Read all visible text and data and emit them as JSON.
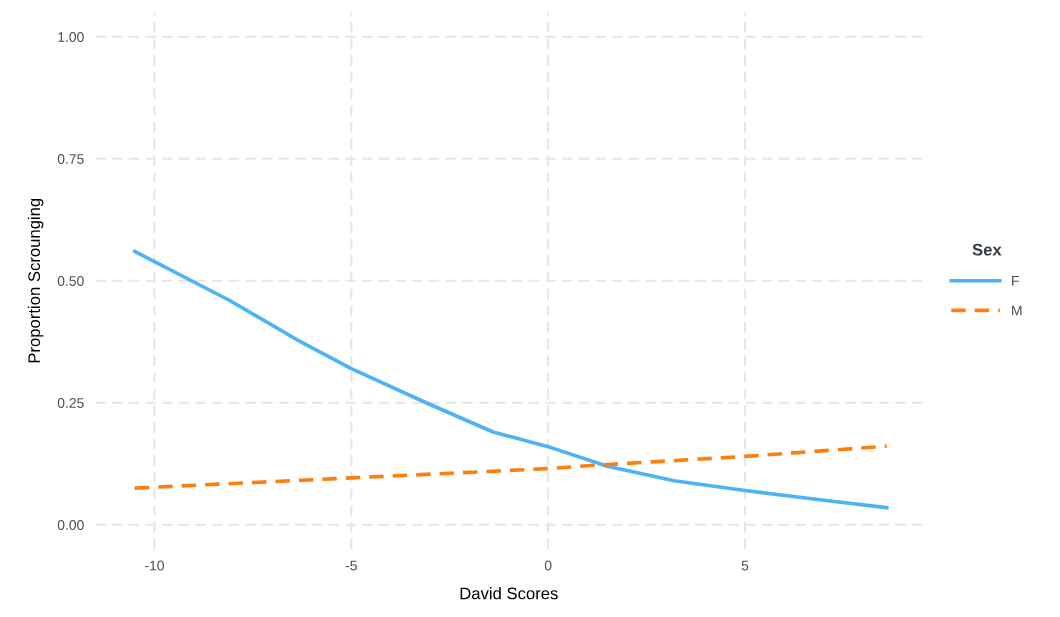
{
  "chart_data": {
    "type": "line",
    "xlabel": "David Scores",
    "ylabel": "Proportion Scrounging",
    "legend_title": "Sex",
    "xlim": [
      -11.5,
      9.5
    ],
    "xticks": [
      -10,
      -5,
      0,
      5
    ],
    "ylim": [
      -0.05,
      1.05
    ],
    "yticks": [
      {
        "value": 0,
        "label": "0.00"
      },
      {
        "value": 0.25,
        "label": "0.25"
      },
      {
        "value": 0.5,
        "label": "0.50"
      },
      {
        "value": 0.75,
        "label": "0.75"
      },
      {
        "value": 1,
        "label": "1.00"
      }
    ],
    "grid": true,
    "legend": "right",
    "marker": "none",
    "series": [
      {
        "name": "F",
        "color": "#4db3f5",
        "line_style": "solid",
        "x": [
          -10.5,
          -8.1,
          -6.4,
          -5,
          -3.1,
          -1.4,
          0,
          1.5,
          3.2,
          5,
          7,
          8.6
        ],
        "values": [
          0.56,
          0.46,
          0.38,
          0.32,
          0.25,
          0.19,
          0.16,
          0.12,
          0.09,
          0.07,
          0.05,
          0.035
        ]
      },
      {
        "name": "M",
        "color": "#ff7f0e",
        "line_style": "dashed",
        "x": [
          -10.5,
          -5,
          0,
          1.2,
          5,
          8.6
        ],
        "values": [
          0.075,
          0.096,
          0.115,
          0.122,
          0.14,
          0.161
        ]
      }
    ]
  }
}
